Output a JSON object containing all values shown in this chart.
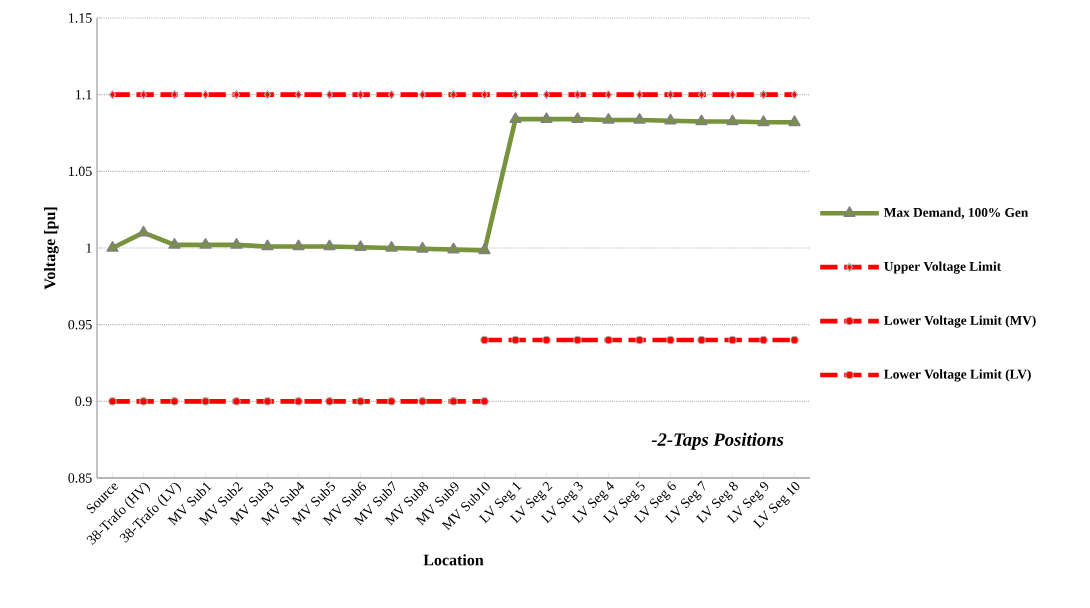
{
  "chart_data": {
    "type": "line",
    "xlabel": "Location",
    "ylabel": "Voltage [pu]",
    "categories": [
      "Source",
      "38-Trafo (HV)",
      "38-Trafo (LV)",
      "MV Sub1",
      "MV Sub2",
      "MV Sub3",
      "MV Sub4",
      "MV Sub5",
      "MV Sub6",
      "MV Sub7",
      "MV Sub8",
      "MV Sub9",
      "MV Sub10",
      "LV Seg 1",
      "LV Seg 2",
      "LV Seg 3",
      "LV Seg 4",
      "LV Seg 5",
      "LV Seg 6",
      "LV Seg 7",
      "LV Seg 8",
      "LV Seg 9",
      "LV Seg 10"
    ],
    "series": [
      {
        "name": "Max Demand, 100% Gen",
        "color": "#77933c",
        "marker": "triangle",
        "line_style": "solid",
        "values": [
          1.0,
          1.01,
          1.002,
          1.002,
          1.002,
          1.001,
          1.001,
          1.001,
          1.0005,
          1.0,
          0.9995,
          0.999,
          0.9985,
          1.084,
          1.084,
          1.084,
          1.0835,
          1.0835,
          1.083,
          1.0825,
          1.0825,
          1.082,
          1.082
        ]
      },
      {
        "name": "Upper Voltage Limit",
        "color": "#ff0000",
        "marker": "diamond",
        "line_style": "dashed",
        "values": [
          1.1,
          1.1,
          1.1,
          1.1,
          1.1,
          1.1,
          1.1,
          1.1,
          1.1,
          1.1,
          1.1,
          1.1,
          1.1,
          1.1,
          1.1,
          1.1,
          1.1,
          1.1,
          1.1,
          1.1,
          1.1,
          1.1,
          1.1
        ]
      },
      {
        "name": "Lower Voltage Limit (MV)",
        "color": "#ff0000",
        "marker": "circle",
        "line_style": "dashed",
        "values": [
          0.9,
          0.9,
          0.9,
          0.9,
          0.9,
          0.9,
          0.9,
          0.9,
          0.9,
          0.9,
          0.9,
          0.9,
          0.9,
          null,
          null,
          null,
          null,
          null,
          null,
          null,
          null,
          null,
          null
        ]
      },
      {
        "name": "Lower Voltage Limit (LV)",
        "color": "#ff0000",
        "marker": "circle",
        "line_style": "dashed",
        "values": [
          null,
          null,
          null,
          null,
          null,
          null,
          null,
          null,
          null,
          null,
          null,
          null,
          0.94,
          0.94,
          0.94,
          0.94,
          0.94,
          0.94,
          0.94,
          0.94,
          0.94,
          0.94,
          0.94
        ]
      }
    ],
    "ylim": [
      0.85,
      1.15
    ],
    "yticks": [
      0.85,
      0.9,
      0.95,
      1,
      1.05,
      1.1,
      1.15
    ],
    "grid": "y",
    "legend": "right",
    "annotations": [
      "-2-Taps Positions"
    ]
  }
}
